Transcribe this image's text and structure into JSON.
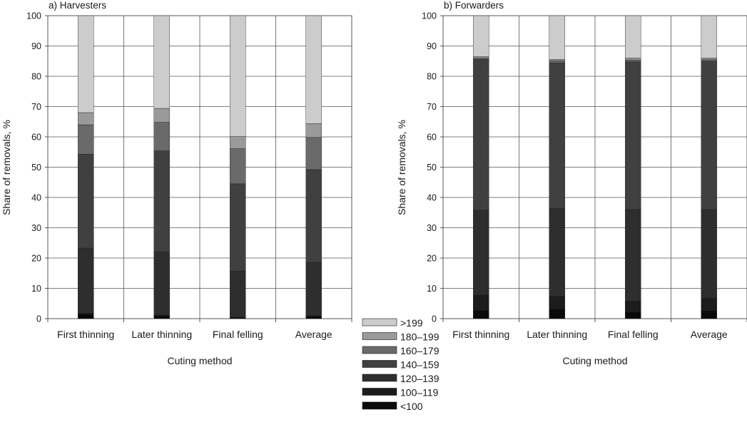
{
  "colors": {
    "<100": "#0a0a0a",
    "100-119": "#1c1c1c",
    "120-139": "#2e2e2e",
    "140-159": "#404040",
    "160-179": "#6a6a6a",
    "180-199": "#9a9a9a",
    ">199": "#cccccc"
  },
  "legend": {
    "entries": [
      ">199",
      "180–199",
      "160–179",
      "140–159",
      "120–139",
      "100–119",
      "<100"
    ]
  },
  "chart_data": [
    {
      "type": "bar",
      "stacked": true,
      "title": "a) Harvesters",
      "xlabel": "Cuting method",
      "ylabel": "Share of removals, %",
      "ylim": [
        0,
        100
      ],
      "yticks": [
        0,
        10,
        20,
        30,
        40,
        50,
        60,
        70,
        80,
        90,
        100
      ],
      "grid": true,
      "categories": [
        "First thinning",
        "Later thinning",
        "Final felling",
        "Average"
      ],
      "series": [
        {
          "name": "<100",
          "values": [
            1.5,
            1.0,
            0.3,
            0.8
          ]
        },
        {
          "name": "100–119",
          "values": [
            0.3,
            0.2,
            0.2,
            0.2
          ]
        },
        {
          "name": "120–139",
          "values": [
            21.5,
            20.8,
            15.2,
            17.6
          ]
        },
        {
          "name": "140–159",
          "values": [
            31.0,
            33.4,
            28.8,
            30.6
          ]
        },
        {
          "name": "160–179",
          "values": [
            9.7,
            9.4,
            11.6,
            10.6
          ]
        },
        {
          "name": "180–199",
          "values": [
            4.0,
            4.6,
            4.0,
            4.6
          ]
        },
        {
          "name": ">199",
          "values": [
            32.0,
            30.6,
            39.9,
            35.6
          ]
        }
      ]
    },
    {
      "type": "bar",
      "stacked": true,
      "title": "b) Forwarders",
      "xlabel": "Cuting method",
      "ylabel": "Share of removals, %",
      "ylim": [
        0,
        100
      ],
      "yticks": [
        0,
        10,
        20,
        30,
        40,
        50,
        60,
        70,
        80,
        90,
        100
      ],
      "grid": true,
      "categories": [
        "First thinning",
        "Later thinning",
        "Final felling",
        "Average"
      ],
      "series": [
        {
          "name": "<100",
          "values": [
            2.8,
            3.2,
            2.2,
            2.6
          ]
        },
        {
          "name": "100–119",
          "values": [
            5.0,
            4.2,
            3.6,
            4.2
          ]
        },
        {
          "name": "120–139",
          "values": [
            28.0,
            29.0,
            30.2,
            29.2
          ]
        },
        {
          "name": "140–159",
          "values": [
            49.8,
            48.0,
            48.8,
            49.0
          ]
        },
        {
          "name": "160–179",
          "values": [
            0.4,
            0.7,
            0.6,
            0.5
          ]
        },
        {
          "name": "180–199",
          "values": [
            0.5,
            0.5,
            0.6,
            0.5
          ]
        },
        {
          "name": ">199",
          "values": [
            13.5,
            14.4,
            14.0,
            14.0
          ]
        }
      ]
    }
  ]
}
